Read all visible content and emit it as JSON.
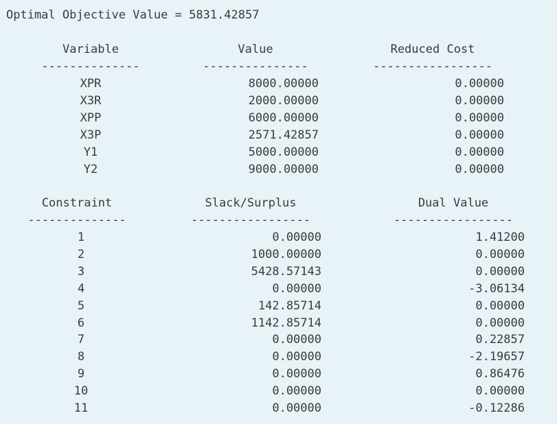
{
  "objective_line": "Optimal Objective Value = 5831.42857",
  "variables_table": {
    "headers": {
      "variable": "Variable",
      "value": "Value",
      "reduced_cost": "Reduced Cost"
    },
    "dividers": {
      "variable": "--------------",
      "value": "---------------",
      "reduced_cost": "-----------------"
    },
    "rows": [
      {
        "name": "XPR",
        "value": "8000.00000",
        "reduced_cost": "0.00000"
      },
      {
        "name": "X3R",
        "value": "2000.00000",
        "reduced_cost": "0.00000"
      },
      {
        "name": "XPP",
        "value": "6000.00000",
        "reduced_cost": "0.00000"
      },
      {
        "name": "X3P",
        "value": "2571.42857",
        "reduced_cost": "0.00000"
      },
      {
        "name": "Y1",
        "value": "5000.00000",
        "reduced_cost": "0.00000"
      },
      {
        "name": "Y2",
        "value": "9000.00000",
        "reduced_cost": "0.00000"
      }
    ]
  },
  "constraints_table": {
    "headers": {
      "constraint": "Constraint",
      "slack_surplus": "Slack/Surplus",
      "dual_value": "Dual Value"
    },
    "dividers": {
      "constraint": "--------------",
      "slack_surplus": "-----------------",
      "dual_value": "-----------------"
    },
    "rows": [
      {
        "constraint": "1",
        "slack_surplus": "0.00000",
        "dual_value": "1.41200"
      },
      {
        "constraint": "2",
        "slack_surplus": "1000.00000",
        "dual_value": "0.00000"
      },
      {
        "constraint": "3",
        "slack_surplus": "5428.57143",
        "dual_value": "0.00000"
      },
      {
        "constraint": "4",
        "slack_surplus": "0.00000",
        "dual_value": "-3.06134"
      },
      {
        "constraint": "5",
        "slack_surplus": "142.85714",
        "dual_value": "0.00000"
      },
      {
        "constraint": "6",
        "slack_surplus": "1142.85714",
        "dual_value": "0.00000"
      },
      {
        "constraint": "7",
        "slack_surplus": "0.00000",
        "dual_value": "0.22857"
      },
      {
        "constraint": "8",
        "slack_surplus": "0.00000",
        "dual_value": "-2.19657"
      },
      {
        "constraint": "9",
        "slack_surplus": "0.00000",
        "dual_value": "0.86476"
      },
      {
        "constraint": "10",
        "slack_surplus": "0.00000",
        "dual_value": "0.00000"
      },
      {
        "constraint": "11",
        "slack_surplus": "0.00000",
        "dual_value": "-0.12286"
      }
    ]
  }
}
